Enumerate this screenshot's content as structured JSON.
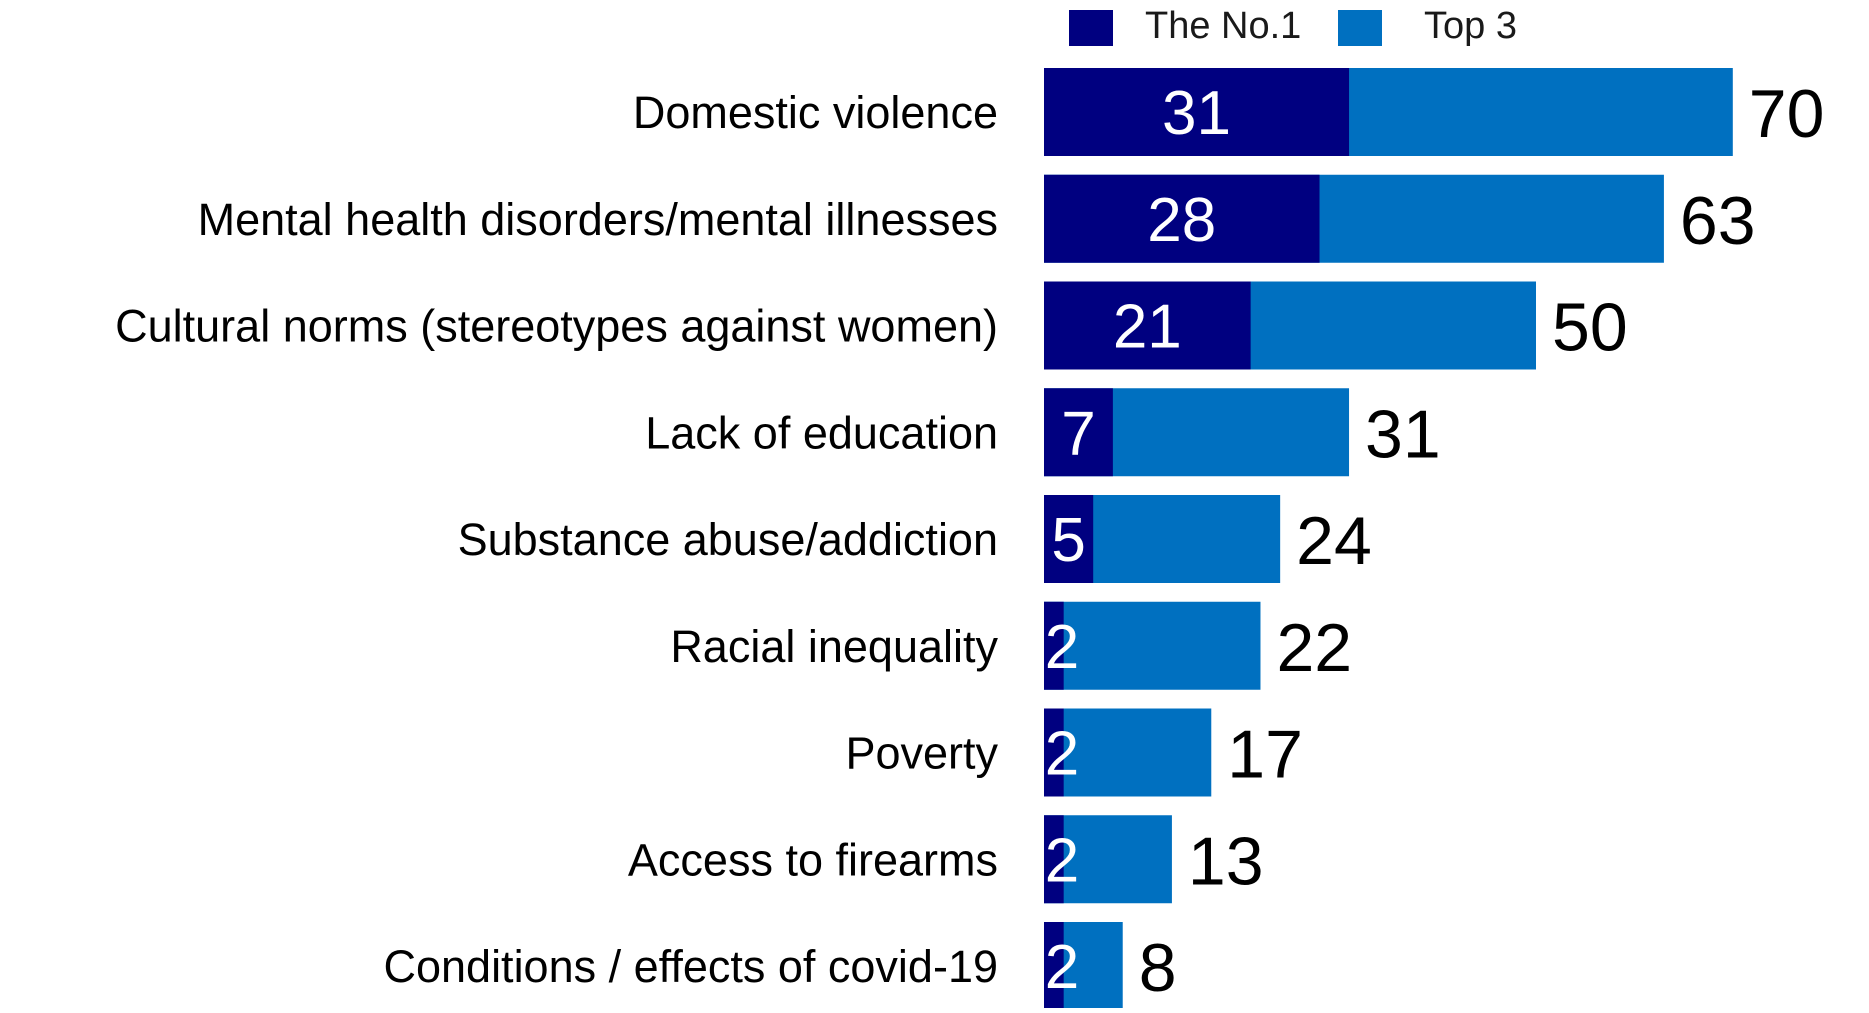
{
  "chart_data": {
    "type": "bar",
    "orientation": "horizontal",
    "stacking": "overlay",
    "categories": [
      "Domestic violence",
      "Mental health disorders/mental illnesses",
      "Cultural norms (stereotypes against women)",
      "Lack of education",
      "Substance abuse/addiction",
      "Racial inequality",
      "Poverty",
      "Access to firearms",
      "Conditions / effects of covid-19"
    ],
    "series": [
      {
        "name": "The No.1",
        "color": "#000080",
        "values": [
          31,
          28,
          21,
          7,
          5,
          2,
          2,
          2,
          2
        ]
      },
      {
        "name": "Top 3",
        "color": "#0070c0",
        "values": [
          70,
          63,
          50,
          31,
          24,
          22,
          17,
          13,
          8
        ]
      }
    ],
    "title": "",
    "xlabel": "",
    "ylabel": "",
    "xlim": [
      0,
      70
    ],
    "grid": false,
    "legend": {
      "placement": "top"
    }
  }
}
